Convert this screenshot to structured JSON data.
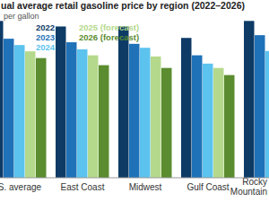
{
  "chart_data": {
    "type": "bar",
    "title": "ual average retail gasoline price by region (2022–2026)",
    "subtitle": "per gallon",
    "categories": [
      "S. average",
      "East Coast",
      "Midwest",
      "Gulf Coast",
      "Rocky Mountain"
    ],
    "series": [
      {
        "name": "2022",
        "color": "#0d3b66",
        "values": [
          3.97,
          3.83,
          3.83,
          3.54,
          3.97
        ]
      },
      {
        "name": "2023",
        "color": "#1f72b8",
        "values": [
          3.52,
          3.43,
          3.39,
          3.1,
          3.61
        ]
      },
      {
        "name": "2024",
        "color": "#5bc3ee",
        "values": [
          3.36,
          3.25,
          3.29,
          2.89,
          3.21
        ]
      },
      {
        "name": "2025 (forecast)",
        "color": "#b5d98c",
        "values": [
          3.2,
          3.1,
          3.07,
          2.78,
          null
        ]
      },
      {
        "name": "2026 (forecast)",
        "color": "#5b8c2f",
        "values": [
          3.03,
          2.85,
          2.78,
          2.6,
          null
        ]
      }
    ],
    "ylim": [
      0,
      4.5
    ],
    "grid": false,
    "legend": "top-left",
    "tick_labels": "x"
  }
}
